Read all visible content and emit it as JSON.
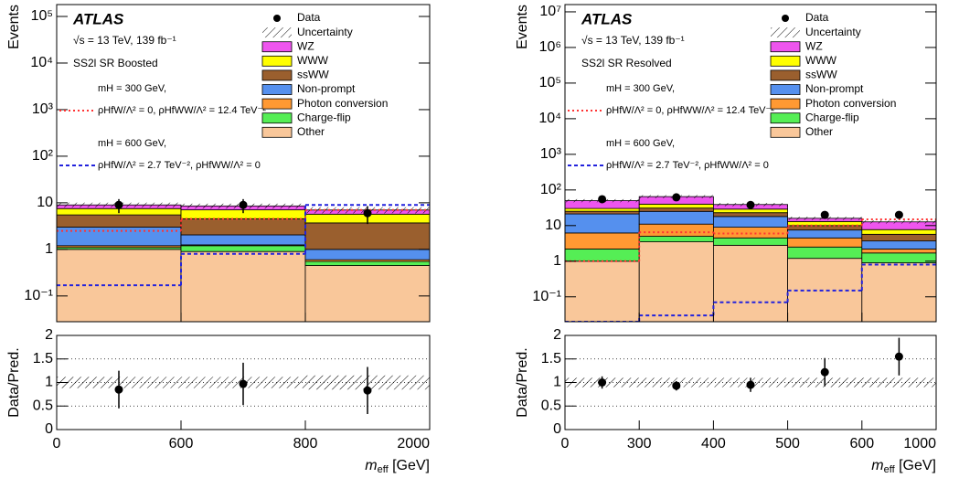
{
  "chart_data": [
    {
      "type": "stacked-histogram",
      "bin_display": "equal-width",
      "log_y": true,
      "experiment": "ATLAS",
      "energy_label": "√s = 13 TeV, 139 fb⁻¹",
      "region": "SS2l SR Boosted",
      "ylabel": "Events",
      "ratio_ylabel": "Data/Pred.",
      "xlabel": {
        "symbol": "m",
        "subscript": "eff",
        "unit": " [GeV]"
      },
      "bins": [
        0,
        600,
        800,
        2000
      ],
      "ylim": [
        0.028,
        180000
      ],
      "yticks": [
        {
          "value": 0.1,
          "label": "10⁻¹"
        },
        1,
        10,
        {
          "value": 100,
          "label": "10²"
        },
        {
          "value": 1000,
          "label": "10³"
        },
        {
          "value": 10000,
          "label": "10⁴"
        },
        {
          "value": 100000,
          "label": "10⁵"
        }
      ],
      "series": [
        {
          "name": "WZ",
          "color": "#ee55ee",
          "values": [
            1.5,
            1.5,
            1.3
          ]
        },
        {
          "name": "WWW",
          "color": "#ffff00",
          "values": [
            2.0,
            2.5,
            2.0
          ]
        },
        {
          "name": "ssWW",
          "color": "#9a5f2e",
          "values": [
            2.5,
            2.5,
            2.7
          ]
        },
        {
          "name": "Non-prompt",
          "color": "#5590ee",
          "values": [
            1.8,
            0.8,
            0.4
          ]
        },
        {
          "name": "Photon conversion",
          "color": "#ff9933",
          "values": [
            0.1,
            0.05,
            0.05
          ]
        },
        {
          "name": "Charge-flip",
          "color": "#55ee55",
          "values": [
            0.1,
            0.3,
            0.1
          ]
        },
        {
          "name": "Other",
          "color": "#f9c79a",
          "values": [
            1.0,
            0.9,
            0.45
          ]
        }
      ],
      "uncertainty": {
        "name": "Uncertainty",
        "values": [
          0.12,
          0.12,
          0.15
        ]
      },
      "data": {
        "name": "Data",
        "values": [
          9,
          9,
          6
        ],
        "errors": [
          3,
          3,
          2.5
        ]
      },
      "signals": [
        {
          "label_lines": [
            "mH = 300 GeV,",
            "ρHfW/Λ² = 0, ρHfWW/Λ² = 12.4 TeV⁻²"
          ],
          "color": "#ff3333",
          "values": [
            2.5,
            4.5,
            7
          ]
        },
        {
          "label_lines": [
            "mH = 600 GeV,",
            "ρHfW/Λ² = 2.7 TeV⁻², ρHfWW/Λ² = 0"
          ],
          "color": "#2222dd",
          "values": [
            0.17,
            0.8,
            9
          ]
        }
      ],
      "ratio": {
        "ylim": [
          0,
          2
        ],
        "yticks": [
          0,
          0.5,
          1,
          1.5,
          2
        ],
        "values": [
          0.85,
          0.97,
          0.83
        ],
        "errors": [
          0.4,
          0.45,
          0.5
        ],
        "uncertainty": [
          0.12,
          0.12,
          0.15
        ]
      }
    },
    {
      "type": "stacked-histogram",
      "bin_display": "equal-width",
      "log_y": true,
      "experiment": "ATLAS",
      "energy_label": "√s = 13 TeV, 139 fb⁻¹",
      "region": "SS2l SR Resolved",
      "ylabel": "Events",
      "ratio_ylabel": "Data/Pred.",
      "xlabel": {
        "symbol": "m",
        "subscript": "eff",
        "unit": " [GeV]"
      },
      "bins": [
        0,
        300,
        400,
        500,
        600,
        1000
      ],
      "ylim": [
        0.02,
        16000000
      ],
      "yticks": [
        {
          "value": 0.1,
          "label": "10⁻¹"
        },
        1,
        10,
        {
          "value": 100,
          "label": "10²"
        },
        {
          "value": 1000,
          "label": "10³"
        },
        {
          "value": 10000,
          "label": "10⁴"
        },
        {
          "value": 100000,
          "label": "10⁵"
        },
        {
          "value": 1000000,
          "label": "10⁶"
        },
        {
          "value": 10000000,
          "label": "10⁷"
        }
      ],
      "series": [
        {
          "name": "WZ",
          "color": "#ee55ee",
          "values": [
            20,
            25,
            10,
            3,
            5
          ]
        },
        {
          "name": "WWW",
          "color": "#ffff00",
          "values": [
            5,
            9,
            6,
            3,
            2
          ]
        },
        {
          "name": "ssWW",
          "color": "#9a5f2e",
          "values": [
            4,
            6,
            5,
            2.5,
            2
          ]
        },
        {
          "name": "Non-prompt",
          "color": "#5590ee",
          "values": [
            15,
            14,
            9,
            3,
            1.5
          ]
        },
        {
          "name": "Photon conversion",
          "color": "#ff9933",
          "values": [
            4,
            6,
            4.5,
            2,
            0.5
          ]
        },
        {
          "name": "Charge-flip",
          "color": "#55ee55",
          "values": [
            1.2,
            1.5,
            1.7,
            1.3,
            0.8
          ]
        },
        {
          "name": "Other",
          "color": "#f9c79a",
          "values": [
            1.0,
            3.5,
            2.8,
            1.2,
            0.9
          ]
        }
      ],
      "uncertainty": {
        "name": "Uncertainty",
        "values": [
          0.1,
          0.1,
          0.1,
          0.1,
          0.1
        ]
      },
      "data": {
        "name": "Data",
        "values": [
          55,
          62,
          38,
          20,
          20
        ],
        "errors": [
          7.4,
          7.9,
          6.2,
          4.5,
          4.5
        ]
      },
      "signals": [
        {
          "label_lines": [
            "mH = 300 GeV,",
            "ρHfW/Λ² = 0, ρHfWW/Λ² = 12.4 TeV⁻²"
          ],
          "color": "#ff3333",
          "values": [
            1,
            6.5,
            6,
            10,
            15
          ]
        },
        {
          "label_lines": [
            "mH = 600 GeV,",
            "ρHfW/Λ² = 2.7 TeV⁻², ρHfWW/Λ² = 0"
          ],
          "color": "#2222dd",
          "values": [
            0.02,
            0.03,
            0.07,
            0.15,
            0.8
          ]
        }
      ],
      "ratio": {
        "ylim": [
          0,
          2
        ],
        "yticks": [
          0,
          0.5,
          1,
          1.5,
          2
        ],
        "values": [
          1.0,
          0.93,
          0.95,
          1.22,
          1.55
        ],
        "errors": [
          0.13,
          0.1,
          0.15,
          0.3,
          0.4
        ],
        "uncertainty": [
          0.1,
          0.1,
          0.1,
          0.1,
          0.1
        ]
      }
    }
  ]
}
